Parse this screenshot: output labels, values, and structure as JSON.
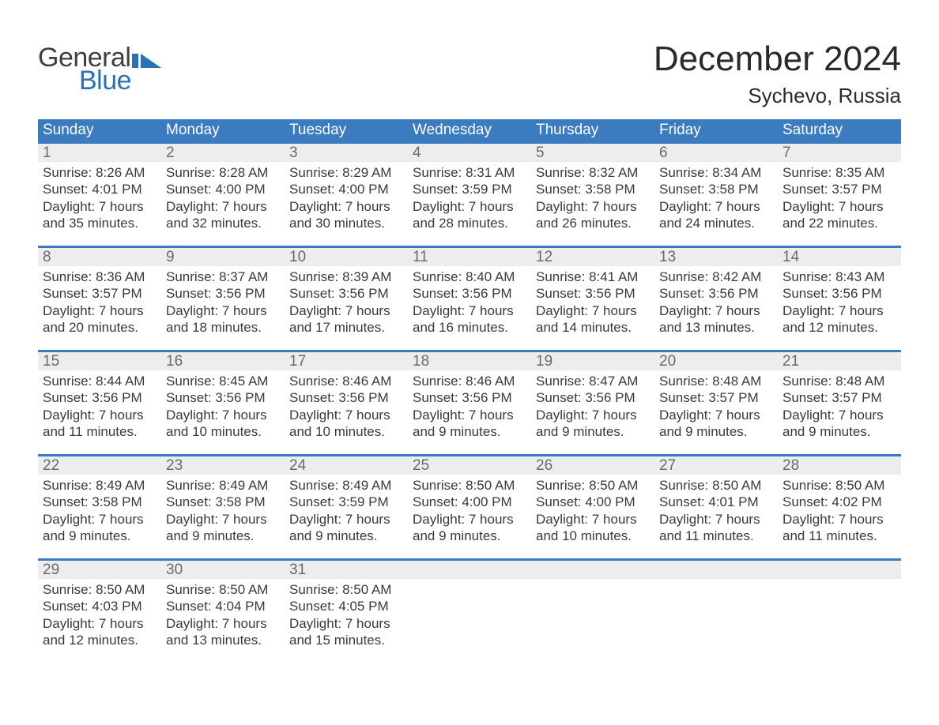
{
  "brand": {
    "text_general": "General",
    "text_blue": "Blue",
    "accent_color": "#2a72b5"
  },
  "title": "December 2024",
  "location": "Sychevo, Russia",
  "colors": {
    "header_bg": "#3b7bbf",
    "header_text": "#ffffff",
    "daynum_bg": "#ededed",
    "daynum_text": "#6a6a6a",
    "body_text": "#3a3a3a",
    "rule": "#3b7bbf",
    "page_bg": "#ffffff"
  },
  "day_names": [
    "Sunday",
    "Monday",
    "Tuesday",
    "Wednesday",
    "Thursday",
    "Friday",
    "Saturday"
  ],
  "weeks": [
    [
      {
        "n": "1",
        "sr": "Sunrise: 8:26 AM",
        "ss": "Sunset: 4:01 PM",
        "d1": "Daylight: 7 hours",
        "d2": "and 35 minutes."
      },
      {
        "n": "2",
        "sr": "Sunrise: 8:28 AM",
        "ss": "Sunset: 4:00 PM",
        "d1": "Daylight: 7 hours",
        "d2": "and 32 minutes."
      },
      {
        "n": "3",
        "sr": "Sunrise: 8:29 AM",
        "ss": "Sunset: 4:00 PM",
        "d1": "Daylight: 7 hours",
        "d2": "and 30 minutes."
      },
      {
        "n": "4",
        "sr": "Sunrise: 8:31 AM",
        "ss": "Sunset: 3:59 PM",
        "d1": "Daylight: 7 hours",
        "d2": "and 28 minutes."
      },
      {
        "n": "5",
        "sr": "Sunrise: 8:32 AM",
        "ss": "Sunset: 3:58 PM",
        "d1": "Daylight: 7 hours",
        "d2": "and 26 minutes."
      },
      {
        "n": "6",
        "sr": "Sunrise: 8:34 AM",
        "ss": "Sunset: 3:58 PM",
        "d1": "Daylight: 7 hours",
        "d2": "and 24 minutes."
      },
      {
        "n": "7",
        "sr": "Sunrise: 8:35 AM",
        "ss": "Sunset: 3:57 PM",
        "d1": "Daylight: 7 hours",
        "d2": "and 22 minutes."
      }
    ],
    [
      {
        "n": "8",
        "sr": "Sunrise: 8:36 AM",
        "ss": "Sunset: 3:57 PM",
        "d1": "Daylight: 7 hours",
        "d2": "and 20 minutes."
      },
      {
        "n": "9",
        "sr": "Sunrise: 8:37 AM",
        "ss": "Sunset: 3:56 PM",
        "d1": "Daylight: 7 hours",
        "d2": "and 18 minutes."
      },
      {
        "n": "10",
        "sr": "Sunrise: 8:39 AM",
        "ss": "Sunset: 3:56 PM",
        "d1": "Daylight: 7 hours",
        "d2": "and 17 minutes."
      },
      {
        "n": "11",
        "sr": "Sunrise: 8:40 AM",
        "ss": "Sunset: 3:56 PM",
        "d1": "Daylight: 7 hours",
        "d2": "and 16 minutes."
      },
      {
        "n": "12",
        "sr": "Sunrise: 8:41 AM",
        "ss": "Sunset: 3:56 PM",
        "d1": "Daylight: 7 hours",
        "d2": "and 14 minutes."
      },
      {
        "n": "13",
        "sr": "Sunrise: 8:42 AM",
        "ss": "Sunset: 3:56 PM",
        "d1": "Daylight: 7 hours",
        "d2": "and 13 minutes."
      },
      {
        "n": "14",
        "sr": "Sunrise: 8:43 AM",
        "ss": "Sunset: 3:56 PM",
        "d1": "Daylight: 7 hours",
        "d2": "and 12 minutes."
      }
    ],
    [
      {
        "n": "15",
        "sr": "Sunrise: 8:44 AM",
        "ss": "Sunset: 3:56 PM",
        "d1": "Daylight: 7 hours",
        "d2": "and 11 minutes."
      },
      {
        "n": "16",
        "sr": "Sunrise: 8:45 AM",
        "ss": "Sunset: 3:56 PM",
        "d1": "Daylight: 7 hours",
        "d2": "and 10 minutes."
      },
      {
        "n": "17",
        "sr": "Sunrise: 8:46 AM",
        "ss": "Sunset: 3:56 PM",
        "d1": "Daylight: 7 hours",
        "d2": "and 10 minutes."
      },
      {
        "n": "18",
        "sr": "Sunrise: 8:46 AM",
        "ss": "Sunset: 3:56 PM",
        "d1": "Daylight: 7 hours",
        "d2": "and 9 minutes."
      },
      {
        "n": "19",
        "sr": "Sunrise: 8:47 AM",
        "ss": "Sunset: 3:56 PM",
        "d1": "Daylight: 7 hours",
        "d2": "and 9 minutes."
      },
      {
        "n": "20",
        "sr": "Sunrise: 8:48 AM",
        "ss": "Sunset: 3:57 PM",
        "d1": "Daylight: 7 hours",
        "d2": "and 9 minutes."
      },
      {
        "n": "21",
        "sr": "Sunrise: 8:48 AM",
        "ss": "Sunset: 3:57 PM",
        "d1": "Daylight: 7 hours",
        "d2": "and 9 minutes."
      }
    ],
    [
      {
        "n": "22",
        "sr": "Sunrise: 8:49 AM",
        "ss": "Sunset: 3:58 PM",
        "d1": "Daylight: 7 hours",
        "d2": "and 9 minutes."
      },
      {
        "n": "23",
        "sr": "Sunrise: 8:49 AM",
        "ss": "Sunset: 3:58 PM",
        "d1": "Daylight: 7 hours",
        "d2": "and 9 minutes."
      },
      {
        "n": "24",
        "sr": "Sunrise: 8:49 AM",
        "ss": "Sunset: 3:59 PM",
        "d1": "Daylight: 7 hours",
        "d2": "and 9 minutes."
      },
      {
        "n": "25",
        "sr": "Sunrise: 8:50 AM",
        "ss": "Sunset: 4:00 PM",
        "d1": "Daylight: 7 hours",
        "d2": "and 9 minutes."
      },
      {
        "n": "26",
        "sr": "Sunrise: 8:50 AM",
        "ss": "Sunset: 4:00 PM",
        "d1": "Daylight: 7 hours",
        "d2": "and 10 minutes."
      },
      {
        "n": "27",
        "sr": "Sunrise: 8:50 AM",
        "ss": "Sunset: 4:01 PM",
        "d1": "Daylight: 7 hours",
        "d2": "and 11 minutes."
      },
      {
        "n": "28",
        "sr": "Sunrise: 8:50 AM",
        "ss": "Sunset: 4:02 PM",
        "d1": "Daylight: 7 hours",
        "d2": "and 11 minutes."
      }
    ],
    [
      {
        "n": "29",
        "sr": "Sunrise: 8:50 AM",
        "ss": "Sunset: 4:03 PM",
        "d1": "Daylight: 7 hours",
        "d2": "and 12 minutes."
      },
      {
        "n": "30",
        "sr": "Sunrise: 8:50 AM",
        "ss": "Sunset: 4:04 PM",
        "d1": "Daylight: 7 hours",
        "d2": "and 13 minutes."
      },
      {
        "n": "31",
        "sr": "Sunrise: 8:50 AM",
        "ss": "Sunset: 4:05 PM",
        "d1": "Daylight: 7 hours",
        "d2": "and 15 minutes."
      },
      null,
      null,
      null,
      null
    ]
  ]
}
